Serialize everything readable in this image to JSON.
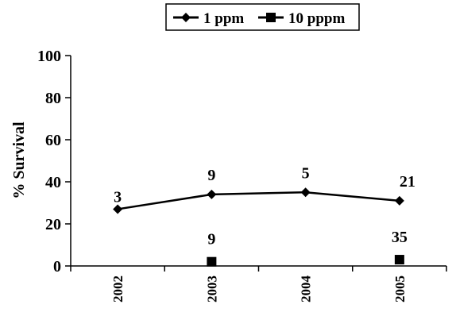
{
  "chart_data": {
    "type": "line",
    "categories": [
      "2002",
      "2003",
      "2004",
      "2005"
    ],
    "ylabel": "% Survival",
    "ylim": [
      0,
      100
    ],
    "yticks": [
      0,
      20,
      40,
      60,
      80,
      100
    ],
    "grid": false,
    "legend_position": "top-center",
    "series": [
      {
        "name": "1 ppm",
        "marker": "diamond",
        "line": true,
        "values": [
          27,
          34,
          35,
          31
        ],
        "labels": [
          "3",
          "9",
          "5",
          "21"
        ],
        "color": "#000000"
      },
      {
        "name": "10 pppm",
        "marker": "square",
        "line": false,
        "values": [
          null,
          2,
          null,
          3
        ],
        "labels": [
          null,
          "9",
          null,
          "35"
        ],
        "color": "#000000"
      }
    ]
  }
}
